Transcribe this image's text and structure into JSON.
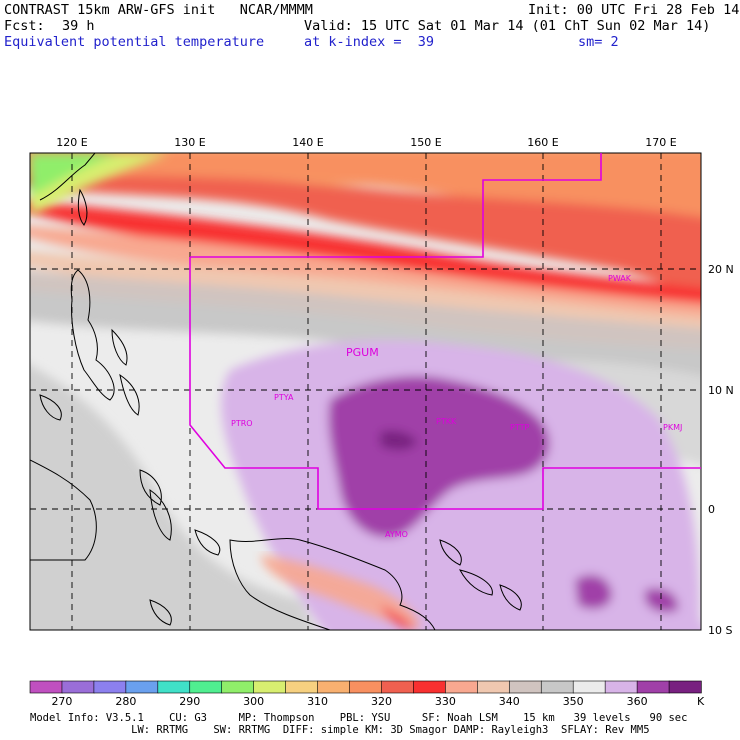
{
  "header": {
    "title": "CONTRAST 15km ARW-GFS init   NCAR/MMMM",
    "init": "Init: 00 UTC Fri 28 Feb 14",
    "fcst_label": "Fcst:",
    "fcst_value": "39 h",
    "valid": "Valid: 15 UTC Sat 01 Mar 14 (01 ChT Sun 02 Mar 14)",
    "field": "Equivalent potential temperature",
    "level": "at k-index =  39",
    "smooth": "sm= 2"
  },
  "map": {
    "lon_labels": [
      "120 E",
      "130 E",
      "140 E",
      "150 E",
      "160 E",
      "170 E"
    ],
    "lat_labels": [
      "20 N",
      "10 N",
      "0",
      "10 S"
    ],
    "stations": [
      "PWAK",
      "PGUM",
      "PTYA",
      "PTRO",
      "PTKK",
      "PTTP",
      "PKMJ",
      "AYMO"
    ]
  },
  "colorbar": {
    "colors": [
      "#c050c0",
      "#9a6ed8",
      "#8c80ee",
      "#6aa0ee",
      "#40e0c8",
      "#50ee90",
      "#90ee6a",
      "#d8ee70",
      "#f6d080",
      "#f8b070",
      "#f89060",
      "#f06050",
      "#f83030",
      "#f8a890",
      "#f0c8b0",
      "#d0c4c0",
      "#c8c8c8",
      "#ececec",
      "#d8b4e8",
      "#a040a8",
      "#782080"
    ],
    "labels": [
      "270",
      "280",
      "290",
      "300",
      "310",
      "320",
      "330",
      "340",
      "350",
      "360"
    ],
    "unit": "K"
  },
  "footer": {
    "line1": "Model Info: V3.5.1    CU: G3     MP: Thompson    PBL: YSU     SF: Noah LSM    15 km   39 levels   90 sec",
    "line2": "                LW: RRTMG    SW: RRTMG  DIFF: simple KM: 3D Smagor DAMP: Rayleigh3  SFLAY: Rev MM5"
  }
}
